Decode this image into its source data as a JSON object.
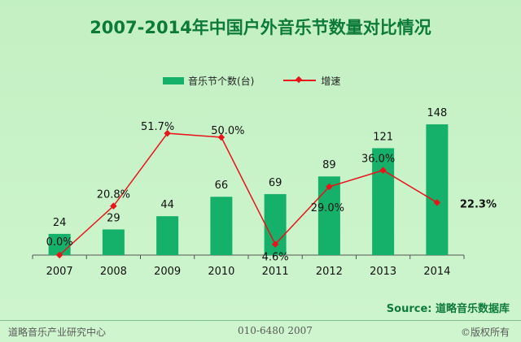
{
  "chart_data": {
    "type": "bar+line",
    "title": "2007-2014年中国户外音乐节数量对比情况",
    "categories": [
      "2007",
      "2008",
      "2009",
      "2010",
      "2011",
      "2012",
      "2013",
      "2014"
    ],
    "series": [
      {
        "name": "音乐节个数(台)",
        "type": "bar",
        "values": [
          24,
          29,
          44,
          66,
          69,
          89,
          121,
          148
        ],
        "labels": [
          "24",
          "29",
          "44",
          "66",
          "69",
          "89",
          "121",
          "148"
        ]
      },
      {
        "name": "增速",
        "type": "line",
        "values": [
          0.0,
          20.8,
          51.7,
          50.0,
          4.6,
          29.0,
          36.0,
          22.3
        ],
        "labels": [
          "0.0%",
          "20.8%",
          "51.7%",
          "50.0%",
          "4.6%",
          "29.0%",
          "36.0%",
          "22.3%"
        ]
      }
    ],
    "bar_ylim": [
      0,
      160
    ],
    "line_ylim": [
      0,
      60
    ],
    "legend_position": "top-center",
    "colors": {
      "bar": "#15b06a",
      "line": "#e8141c",
      "title": "#0e7a3a"
    }
  },
  "source": "Source: 道略音乐数据库",
  "footer": {
    "left": "道略音乐产业研究中心",
    "center": "010-6480 2007",
    "right": "©版权所有"
  }
}
